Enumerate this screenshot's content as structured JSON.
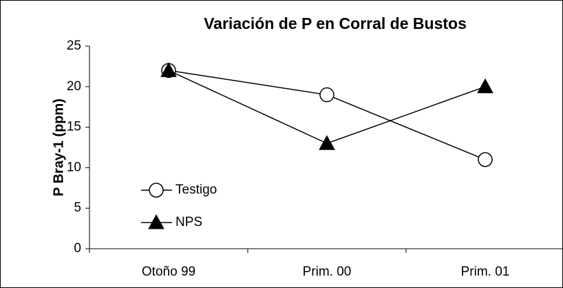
{
  "chart_data": {
    "type": "line",
    "title": "Variación de P en Corral de Bustos",
    "y_label": "P Bray-1 (ppm)",
    "categories": [
      "Otoño 99",
      "Prim. 00",
      "Prim. 01"
    ],
    "series": [
      {
        "name": "Testigo",
        "color": "#000000",
        "marker": "circle-open",
        "values": [
          22,
          19,
          11
        ]
      },
      {
        "name": "NPS",
        "color": "#000000",
        "marker": "triangle",
        "values": [
          22,
          13,
          20
        ]
      }
    ],
    "ylim": [
      0,
      25
    ],
    "yticks": [
      0,
      5,
      10,
      15,
      20,
      25
    ],
    "grid": false,
    "legend": "left"
  }
}
